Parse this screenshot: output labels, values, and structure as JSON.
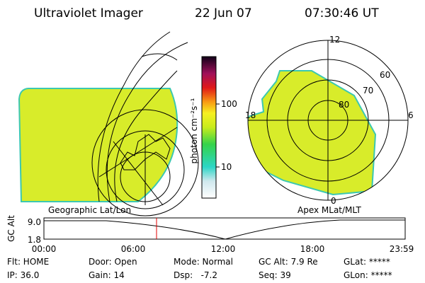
{
  "header": {
    "title": "Ultraviolet Imager",
    "date": "22 Jun 07",
    "time": "07:30:46 UT"
  },
  "colorbar": {
    "label": "photon cm⁻²s⁻¹",
    "ticks": [
      "100",
      "10"
    ]
  },
  "left_panel": {
    "label": "Geographic Lat/Lon"
  },
  "right_panel": {
    "label": "Apex MLat/MLT",
    "mlt_labels": [
      "12",
      "18",
      "6",
      "0"
    ],
    "lat_labels": [
      "60",
      "70",
      "80"
    ]
  },
  "altitude_plot": {
    "label": "GC Alt",
    "y_labels": [
      "9.0",
      "1.8"
    ],
    "time_labels": [
      "00:00",
      "06:00",
      "12:00",
      "18:00",
      "23:59"
    ]
  },
  "status": {
    "row1": [
      "Flt: HOME",
      "Door: Open",
      "Mode: Normal",
      "GC Alt: 7.9 Re",
      "GLat: *****"
    ],
    "row2": [
      "IP: 36.0",
      "Gain: 14",
      "Dsp:   -7.2",
      "Seq: 39",
      "GLon: *****"
    ]
  }
}
